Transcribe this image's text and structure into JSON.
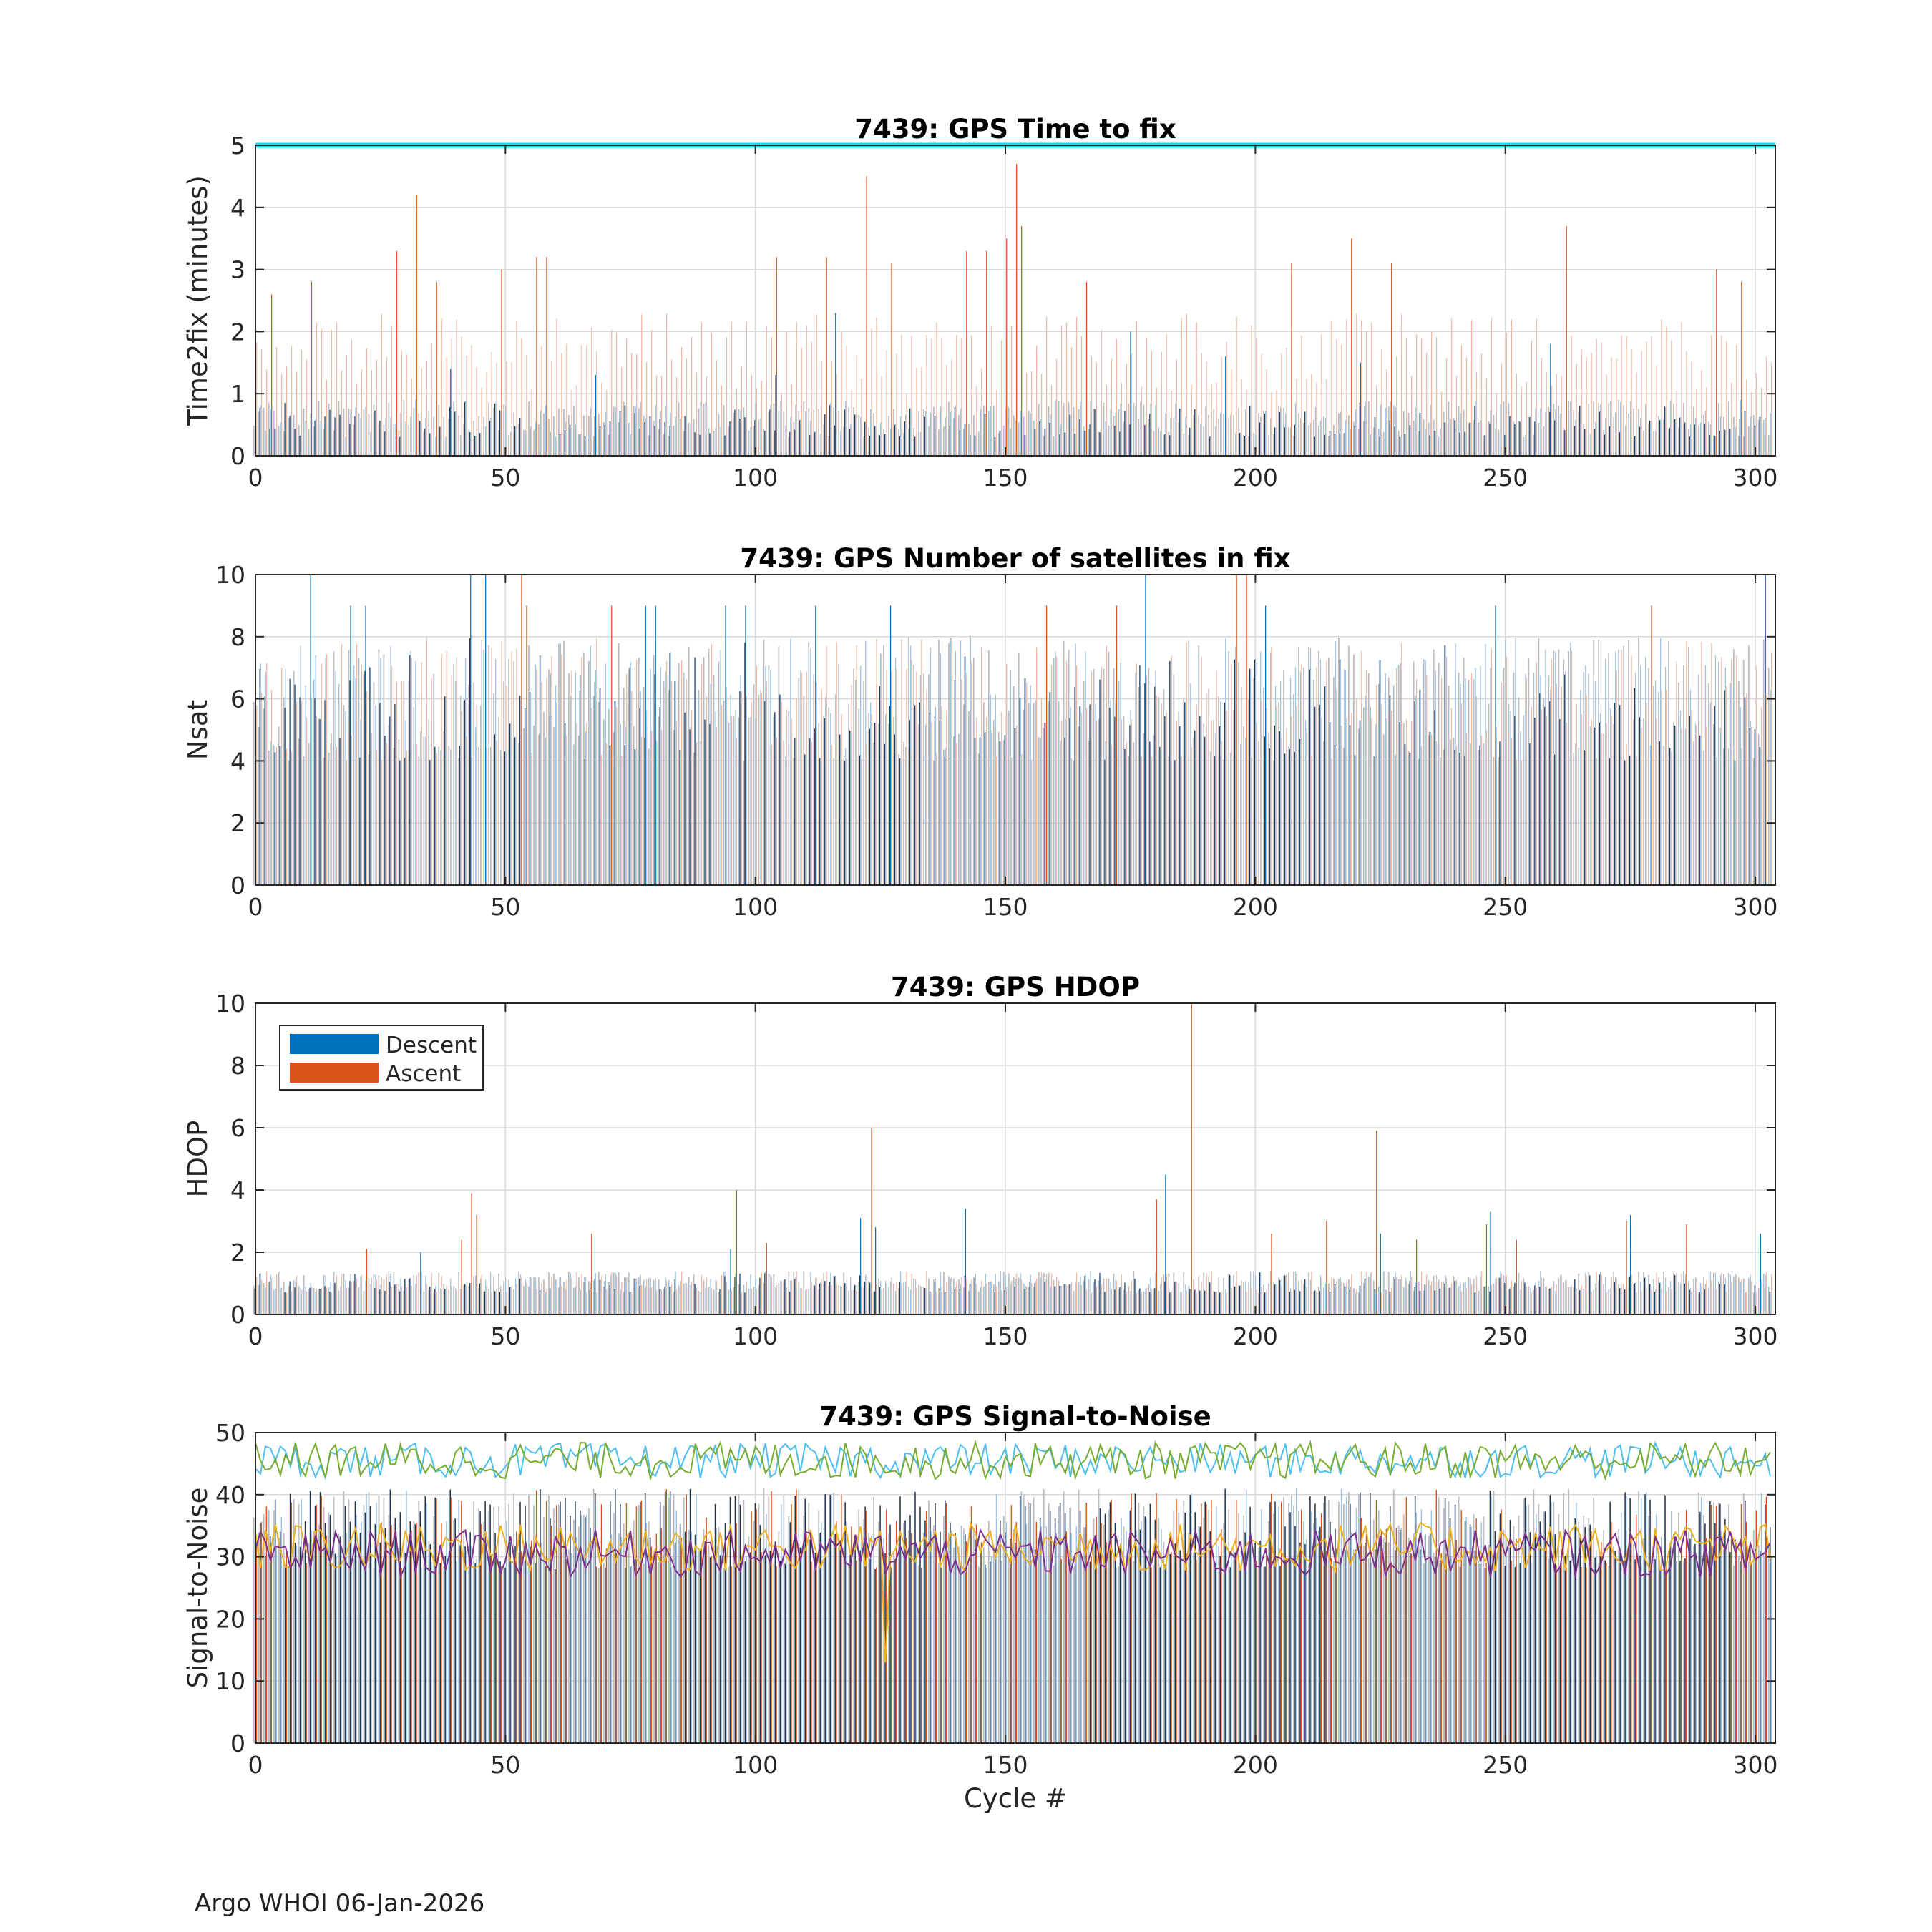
{
  "figure": {
    "float_id": "7439",
    "footer": "Argo WHOI 06-Jan-2026"
  },
  "colors": {
    "descent": "#0072BD",
    "ascent": "#D95319",
    "descent_light": "#9DC3E6",
    "ascent_light": "#F0B8A0",
    "dark_bar": "#1f3550",
    "gray_bar": "#b9bcc2",
    "timeout_line": "#00E5E5",
    "snr_line1": "#4DBEEE",
    "snr_line2": "#77AC30",
    "snr_line3": "#EDB120",
    "snr_line4": "#7E2F8E",
    "grid": "#d9d9d9",
    "axis": "#262626"
  },
  "chart_data": [
    {
      "id": "time2fix",
      "type": "bar",
      "title": "7439: GPS Time to fix",
      "xlabel": "",
      "ylabel": "Time2fix (minutes)",
      "xlim": [
        0,
        304
      ],
      "ylim": [
        0,
        5
      ],
      "xticks": [
        0,
        50,
        100,
        150,
        200,
        250,
        300
      ],
      "yticks": [
        0,
        1,
        2,
        3,
        4,
        5
      ],
      "grid": true,
      "reference_line": {
        "name": "timeout",
        "y": 5
      },
      "series": [
        {
          "name": "Descent",
          "typical": [
            0.3,
            0.9
          ],
          "peaks": [
            [
              0,
              1.3
            ],
            [
              39,
              1.4
            ],
            [
              68,
              1.3
            ],
            [
              104,
              1.3
            ],
            [
              116,
              2.3
            ],
            [
              175,
              2.0
            ],
            [
              194,
              1.6
            ],
            [
              221,
              1.5
            ],
            [
              259,
              1.8
            ]
          ]
        },
        {
          "name": "Ascent",
          "typical": [
            1.0,
            2.3
          ],
          "peaks": [
            [
              3,
              2.6
            ],
            [
              11,
              2.8
            ],
            [
              28,
              3.3
            ],
            [
              32,
              4.2
            ],
            [
              36,
              2.8
            ],
            [
              49,
              3.0
            ],
            [
              56,
              3.2
            ],
            [
              58,
              3.2
            ],
            [
              104,
              3.2
            ],
            [
              114,
              3.2
            ],
            [
              122,
              4.5
            ],
            [
              127,
              3.1
            ],
            [
              142,
              3.3
            ],
            [
              146,
              3.3
            ],
            [
              150,
              3.5
            ],
            [
              152,
              4.7
            ],
            [
              153,
              3.7
            ],
            [
              166,
              2.8
            ],
            [
              207,
              3.1
            ],
            [
              219,
              3.5
            ],
            [
              227,
              3.1
            ],
            [
              262,
              3.7
            ],
            [
              292,
              3.0
            ],
            [
              297,
              2.8
            ]
          ]
        }
      ]
    },
    {
      "id": "nsat",
      "type": "bar",
      "title": "7439: GPS Number of satellites in fix",
      "xlabel": "",
      "ylabel": "Nsat",
      "xlim": [
        0,
        304
      ],
      "ylim": [
        0,
        10
      ],
      "xticks": [
        0,
        50,
        100,
        150,
        200,
        250,
        300
      ],
      "yticks": [
        0,
        2,
        4,
        6,
        8,
        10
      ],
      "grid": true,
      "series": [
        {
          "name": "Descent",
          "typical": [
            4,
            8
          ],
          "peaks": [
            [
              11,
              10
            ],
            [
              19,
              9
            ],
            [
              22,
              9
            ],
            [
              43,
              10
            ],
            [
              46,
              10
            ],
            [
              78,
              9
            ],
            [
              80,
              9
            ],
            [
              94,
              9
            ],
            [
              98,
              9
            ],
            [
              112,
              9
            ],
            [
              127,
              9
            ],
            [
              178,
              10
            ],
            [
              202,
              9
            ],
            [
              248,
              9
            ],
            [
              302,
              10
            ]
          ]
        },
        {
          "name": "Ascent",
          "typical": [
            4,
            8
          ],
          "peaks": [
            [
              53,
              10
            ],
            [
              54,
              9
            ],
            [
              71,
              9
            ],
            [
              158,
              9
            ],
            [
              172,
              9
            ],
            [
              196,
              10
            ],
            [
              198,
              10
            ],
            [
              279,
              9
            ]
          ]
        }
      ]
    },
    {
      "id": "hdop",
      "type": "bar",
      "title": "7439: GPS HDOP",
      "xlabel": "",
      "ylabel": "HDOP",
      "xlim": [
        0,
        304
      ],
      "ylim": [
        0,
        10
      ],
      "xticks": [
        0,
        50,
        100,
        150,
        200,
        250,
        300
      ],
      "yticks": [
        0,
        2,
        4,
        6,
        8,
        10
      ],
      "grid": true,
      "legend": {
        "location": "top-left",
        "entries": [
          "Descent",
          "Ascent"
        ]
      },
      "series": [
        {
          "name": "Descent",
          "typical": [
            0.7,
            1.4
          ],
          "peaks": [
            [
              33,
              2.0
            ],
            [
              95,
              2.1
            ],
            [
              121,
              3.1
            ],
            [
              124,
              2.8
            ],
            [
              142,
              3.4
            ],
            [
              182,
              4.5
            ],
            [
              225,
              2.6
            ],
            [
              247,
              3.3
            ],
            [
              275,
              3.2
            ],
            [
              301,
              2.6
            ]
          ]
        },
        {
          "name": "Ascent",
          "typical": [
            0.7,
            1.4
          ],
          "peaks": [
            [
              22,
              2.1
            ],
            [
              41,
              2.4
            ],
            [
              43,
              3.9
            ],
            [
              44,
              3.2
            ],
            [
              67,
              2.6
            ],
            [
              96,
              4.0
            ],
            [
              102,
              2.3
            ],
            [
              123,
              6.0
            ],
            [
              180,
              3.7
            ],
            [
              187,
              10.0
            ],
            [
              203,
              2.6
            ],
            [
              214,
              3.0
            ],
            [
              224,
              5.9
            ],
            [
              232,
              2.4
            ],
            [
              246,
              2.9
            ],
            [
              252,
              2.4
            ],
            [
              274,
              3.0
            ],
            [
              286,
              2.9
            ]
          ]
        }
      ]
    },
    {
      "id": "snr",
      "type": "bar+line",
      "title": "7439: GPS Signal-to-Noise",
      "xlabel": "Cycle #",
      "ylabel": "Signal-to-Noise",
      "xlim": [
        0,
        304
      ],
      "ylim": [
        0,
        50
      ],
      "xticks": [
        0,
        50,
        100,
        150,
        200,
        250,
        300
      ],
      "yticks": [
        0,
        10,
        20,
        30,
        40,
        50
      ],
      "grid": true,
      "bars": {
        "typical": [
          28,
          41
        ]
      },
      "lines": [
        {
          "name": "snr-max-descent",
          "mean": 45.5,
          "spread": 2.8
        },
        {
          "name": "snr-max-ascent",
          "mean": 45.5,
          "spread": 3.0
        },
        {
          "name": "snr-mean-descent",
          "mean": 31.5,
          "spread": 4.0,
          "min_point": [
            126,
            13
          ]
        },
        {
          "name": "snr-mean-ascent",
          "mean": 30.5,
          "spread": 3.8
        }
      ]
    }
  ]
}
